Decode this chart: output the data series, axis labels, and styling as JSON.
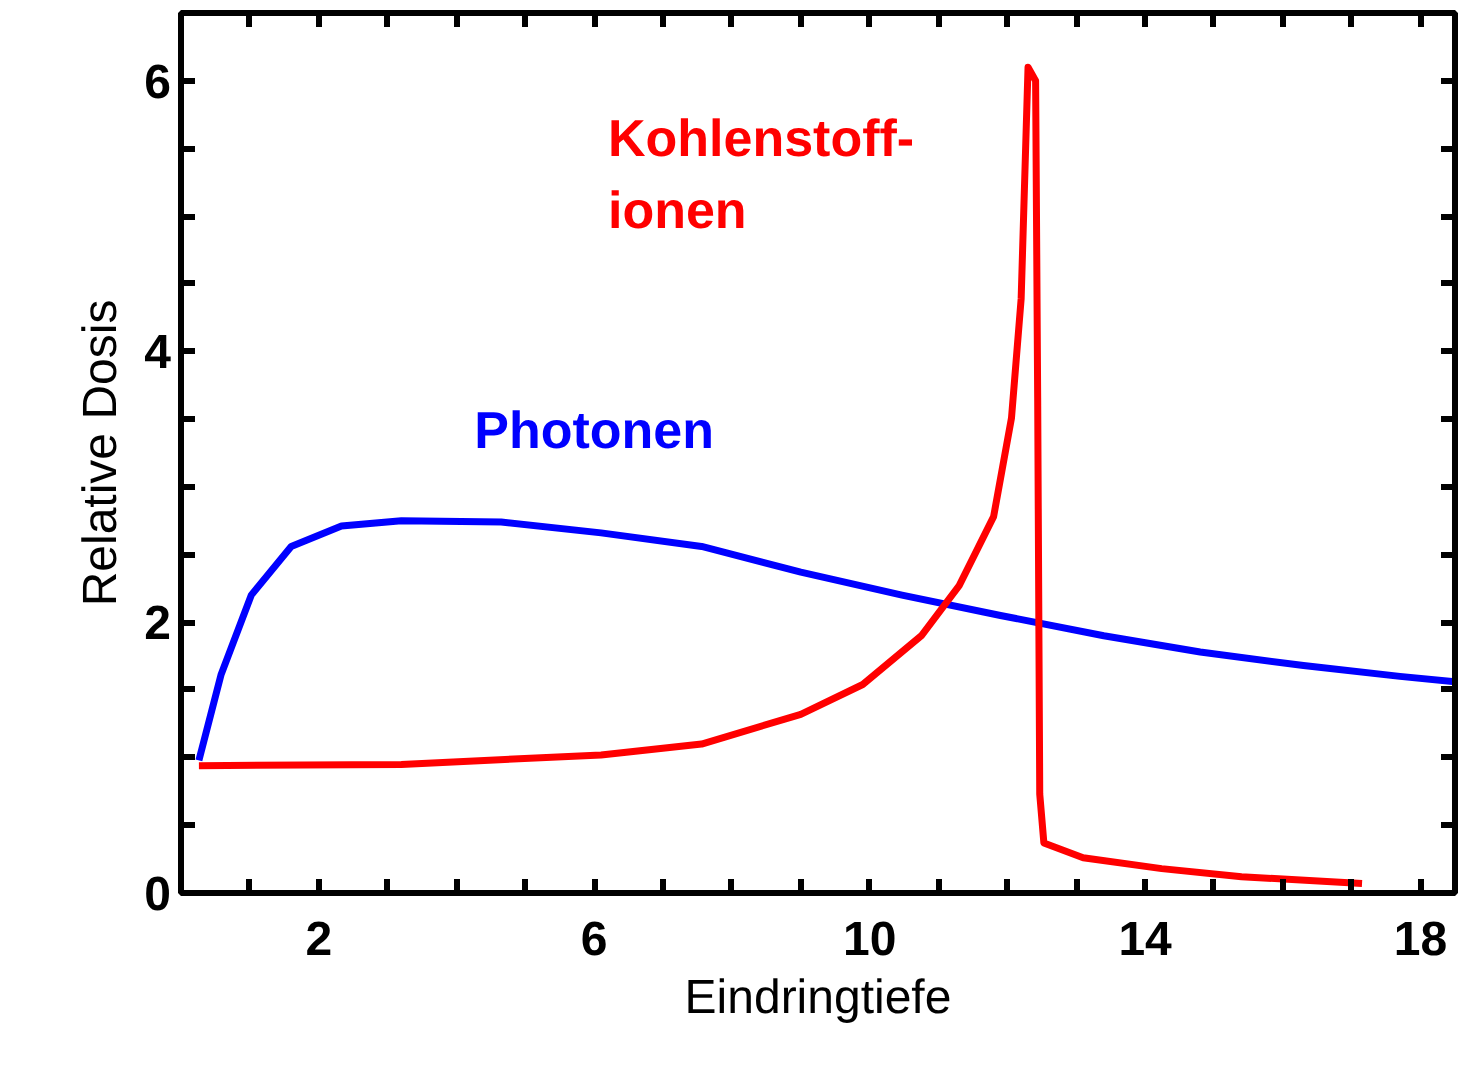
{
  "chart_data": {
    "type": "line",
    "xlabel": "Eindringtiefe",
    "ylabel": "Relative Dosis",
    "xlim": [
      0,
      18.5
    ],
    "ylim": [
      0,
      6.5
    ],
    "xticks": [
      {
        "value": 1,
        "label": null
      },
      2,
      {
        "value": 3,
        "label": null
      },
      {
        "value": 4,
        "label": null
      },
      {
        "value": 5,
        "label": null
      },
      6,
      {
        "value": 7,
        "label": null
      },
      {
        "value": 8,
        "label": null
      },
      {
        "value": 9,
        "label": null
      },
      10,
      {
        "value": 11,
        "label": null
      },
      {
        "value": 12,
        "label": null
      },
      {
        "value": 13,
        "label": null
      },
      14,
      {
        "value": 15,
        "label": null
      },
      {
        "value": 16,
        "label": null
      },
      {
        "value": 17,
        "label": null
      },
      18
    ],
    "yticks": [
      0,
      {
        "value": 0.5,
        "label": null
      },
      {
        "value": 1,
        "label": null
      },
      {
        "value": 1.5,
        "label": null
      },
      2,
      {
        "value": 2.5,
        "label": null
      },
      {
        "value": 3,
        "label": null
      },
      {
        "value": 3.5,
        "label": null
      },
      4,
      {
        "value": 4.5,
        "label": null
      },
      {
        "value": 5,
        "label": null
      },
      {
        "value": 5.5,
        "label": null
      },
      6
    ],
    "grid": false,
    "series": [
      {
        "name": "Photonen",
        "color": "#0000ff",
        "x": [
          0.26,
          0.58,
          1.02,
          1.6,
          2.33,
          3.2,
          4.65,
          6.1,
          7.56,
          9.0,
          10.47,
          11.9,
          13.4,
          14.8,
          16.3,
          17.7,
          18.5
        ],
        "values": [
          0.98,
          1.61,
          2.2,
          2.56,
          2.71,
          2.75,
          2.74,
          2.66,
          2.56,
          2.37,
          2.2,
          2.05,
          1.9,
          1.78,
          1.68,
          1.6,
          1.56
        ]
      },
      {
        "name": "Kohlenstoff-\nionen",
        "color": "#ff0000",
        "x": [
          0.26,
          3.2,
          6.1,
          7.56,
          9.0,
          9.9,
          10.75,
          11.3,
          11.8,
          12.06,
          12.2,
          12.3,
          12.41,
          12.44,
          12.47,
          12.53,
          13.1,
          14.24,
          15.4,
          17.15
        ],
        "values": [
          0.94,
          0.95,
          1.02,
          1.1,
          1.32,
          1.54,
          1.9,
          2.27,
          2.78,
          3.51,
          4.39,
          6.1,
          6.0,
          3.66,
          0.73,
          0.37,
          0.26,
          0.18,
          0.12,
          0.07
        ]
      }
    ]
  }
}
